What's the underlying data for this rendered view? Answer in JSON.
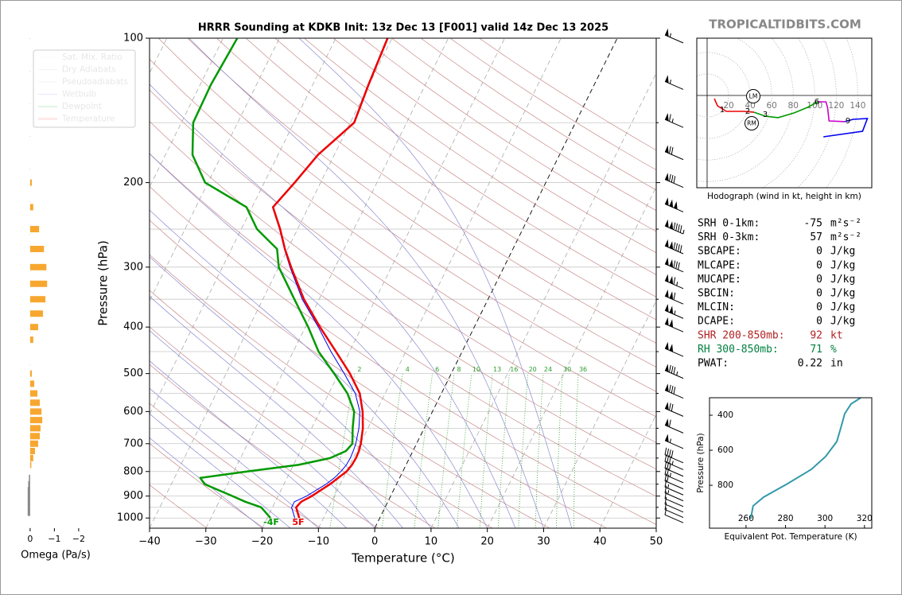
{
  "watermark": "TROPICALTIDBITS.COM",
  "chart_data": [
    {
      "type": "skewt",
      "title": "HRRR Sounding at KDKB Init: 13z Dec 13 [F001] valid 14z Dec 13 2025",
      "x_label": "Temperature (°C)",
      "y_label": "Pressure (hPa)",
      "log_y": true,
      "xlim": [
        -40,
        50
      ],
      "ylim": [
        1050,
        100
      ],
      "xticks": [
        {
          "value": -40,
          "label": "−40"
        },
        {
          "value": -30,
          "label": "−30"
        },
        {
          "value": -20,
          "label": "−20"
        },
        {
          "value": -10,
          "label": "−10"
        },
        0,
        10,
        20,
        30,
        40,
        50
      ],
      "yticks": [
        100,
        200,
        300,
        400,
        500,
        600,
        700,
        800,
        900,
        1000
      ],
      "y_minor_ticks": [
        150,
        250,
        350,
        450,
        550,
        650,
        750,
        850,
        950
      ],
      "pressure": [
        1000,
        950,
        925,
        900,
        850,
        825,
        800,
        775,
        750,
        725,
        700,
        650,
        600,
        550,
        500,
        450,
        400,
        350,
        300,
        275,
        250,
        225,
        200,
        175,
        150,
        125,
        100
      ],
      "series": [
        {
          "name": "Wetbulb",
          "color": "#0000ee",
          "line_width": 1,
          "values": [
            -15.1,
            -16.6,
            -16.6,
            -14.9,
            -12.5,
            -11.6,
            -11.0,
            -10.6,
            -10.5,
            -10.6,
            -10.8,
            -11.6,
            -12.9,
            -15.3,
            -19.0,
            -23.3,
            -27.7,
            -33.0,
            -38.0,
            -40.6,
            -43.2,
            -46.4,
            -44.7,
            -43.0,
            -39.4,
            -40.2,
            -40.9
          ]
        },
        {
          "name": "Dewpoint",
          "color": "#009900",
          "line_width": 2.5,
          "values": [
            -19.4,
            -22.0,
            -25.3,
            -28.1,
            -34.1,
            -35.4,
            -27.7,
            -19.1,
            -14.1,
            -11.9,
            -11.4,
            -12.7,
            -13.9,
            -16.7,
            -20.8,
            -25.5,
            -29.5,
            -34.4,
            -40.0,
            -41.9,
            -47.2,
            -51.0,
            -60.5,
            -65.2,
            -67.9,
            -68.1,
            -67.5
          ]
        },
        {
          "name": "Temperature",
          "color": "#ee0000",
          "line_width": 2.5,
          "values": [
            -14.3,
            -15.8,
            -15.4,
            -14.0,
            -11.8,
            -10.9,
            -10.0,
            -9.6,
            -9.5,
            -9.6,
            -9.9,
            -10.9,
            -12.4,
            -14.5,
            -18.0,
            -22.4,
            -27.4,
            -32.7,
            -37.8,
            -40.5,
            -43.1,
            -46.3,
            -44.6,
            -42.9,
            -39.3,
            -40.1,
            -40.8
          ]
        }
      ],
      "reference_lines": [
        {
          "name": "Sat. Mix. Ratio",
          "color": "#2ca02c",
          "style": "dotted"
        },
        {
          "name": "Dry Adiabats",
          "color": "#c98a8a",
          "style": "solid"
        },
        {
          "name": "Pseudoadiabats",
          "color": "#8a8ad0",
          "style": "solid"
        }
      ],
      "mixing_ratio_labels": [
        2,
        4,
        6,
        8,
        10,
        13,
        16,
        20,
        24,
        30,
        36
      ],
      "annotations": [
        {
          "text": "-4F",
          "color": "#009900"
        },
        {
          "text": "5F",
          "color": "#ee0000"
        }
      ],
      "wind_barbs": {
        "pressure": [
          100,
          125,
          150,
          175,
          200,
          225,
          250,
          275,
          300,
          325,
          350,
          375,
          400,
          450,
          500,
          550,
          600,
          650,
          700,
          750,
          775,
          800,
          825,
          850,
          875,
          900,
          925,
          950,
          975,
          1000
        ],
        "speed": [
          55,
          55,
          65,
          70,
          80,
          150,
          145,
          140,
          130,
          115,
          110,
          105,
          100,
          100,
          85,
          80,
          70,
          60,
          55,
          40,
          35,
          30,
          25,
          20,
          15,
          15,
          10,
          10,
          10,
          10
        ]
      }
    },
    {
      "type": "bar",
      "orientation": "horizontal",
      "x_label": "Omega (Pa/s)",
      "xlim": [
        0.16,
        -2.2
      ],
      "ylim": [
        1050,
        100
      ],
      "xticks": [
        0,
        {
          "value": -1,
          "label": "−1"
        },
        {
          "value": -2,
          "label": "−2"
        }
      ],
      "color": "#f7a730",
      "positive_color": "#888888",
      "pressure": [
        200,
        225,
        250,
        275,
        300,
        325,
        350,
        375,
        400,
        425,
        500,
        525,
        550,
        575,
        600,
        625,
        650,
        675,
        700,
        725,
        750,
        775,
        825,
        850,
        875,
        900,
        925,
        950,
        975
      ],
      "values": [
        -0.07,
        -0.13,
        -0.37,
        -0.57,
        -0.67,
        -0.7,
        -0.63,
        -0.53,
        -0.33,
        -0.13,
        -0.07,
        -0.17,
        -0.3,
        -0.4,
        -0.47,
        -0.5,
        -0.43,
        -0.4,
        -0.33,
        -0.2,
        -0.13,
        -0.05,
        0.05,
        0.08,
        0.1,
        0.1,
        0.1,
        0.1,
        0.1
      ]
    },
    {
      "type": "hodograph",
      "caption": "Hodograph (wind in kt, height in km)",
      "xlim": [
        -9.6,
        153
      ],
      "ylim": [
        -85.9,
        53.3
      ],
      "ring_ticks": [
        20,
        40,
        60,
        80,
        100,
        120,
        140
      ],
      "series": [
        {
          "color": "#ee0000",
          "u": [
            6.7,
            9.6,
            17.8,
            34.1,
            43.7
          ],
          "v": [
            -3,
            -9.6,
            -14.8,
            -14.8,
            -15.6
          ]
        },
        {
          "color": "#009900",
          "u": [
            43.7,
            54.1,
            65.9,
            80.7,
            93.3,
            103
          ],
          "v": [
            -15.6,
            -19.3,
            -20.7,
            -16.3,
            -11.1,
            -5.9
          ]
        },
        {
          "color": "#cc00cc",
          "u": [
            103,
            110.4,
            111.9,
            113.3,
            128.1
          ],
          "v": [
            -5.9,
            -5.9,
            -11.1,
            -23.7,
            -24.4
          ]
        },
        {
          "color": "#0000ee",
          "u": [
            128.1,
            135.6,
            148.9,
            144.4,
            108.1
          ],
          "v": [
            -24.4,
            -22.2,
            -21.5,
            -33.3,
            -38.5
          ]
        }
      ],
      "height_labels": [
        "1",
        "2",
        "3",
        "6",
        "9"
      ],
      "storm_motion_labels": [
        "LM",
        "RM"
      ]
    },
    {
      "type": "line",
      "x_label": "Equivalent Pot. Temperature (K)",
      "y_label": "Pressure (hPa)",
      "xlim": [
        241.5,
        323.7
      ],
      "ylim": [
        1045,
        300
      ],
      "xticks": [
        260,
        280,
        300,
        320
      ],
      "yticks": [
        400,
        600,
        800
      ],
      "color": "#3399aa",
      "pressure": [
        991,
        918,
        868,
        791,
        709,
        636,
        550,
        473,
        391,
        336,
        300
      ],
      "values": [
        262.4,
        263.6,
        268.9,
        281,
        293.1,
        300.3,
        306,
        308,
        310,
        313.2,
        318.1
      ]
    }
  ],
  "stats": {
    "rows": [
      {
        "label": "SRH 0-1km:",
        "value": -75,
        "unit": "m²s⁻²"
      },
      {
        "label": "SRH 0-3km:",
        "value": 57,
        "unit": "m²s⁻²"
      },
      {
        "label": "SBCAPE:",
        "value": 0,
        "unit": "J/kg"
      },
      {
        "label": "MLCAPE:",
        "value": 0,
        "unit": "J/kg"
      },
      {
        "label": "MUCAPE:",
        "value": 0,
        "unit": "J/kg"
      },
      {
        "label": "SBCIN:",
        "value": 0,
        "unit": "J/kg"
      },
      {
        "label": "MLCIN:",
        "value": 0,
        "unit": "J/kg"
      },
      {
        "label": "DCAPE:",
        "value": 0,
        "unit": "J/kg"
      },
      {
        "label": "SHR 200-850mb:",
        "value": 92,
        "unit": "kt",
        "color": "#b22222"
      },
      {
        "label": "RH 300-850mb:",
        "value": 71,
        "unit": "%",
        "color": "#008040"
      },
      {
        "label": "PWAT:",
        "value": 0.22,
        "unit": "in"
      }
    ]
  }
}
